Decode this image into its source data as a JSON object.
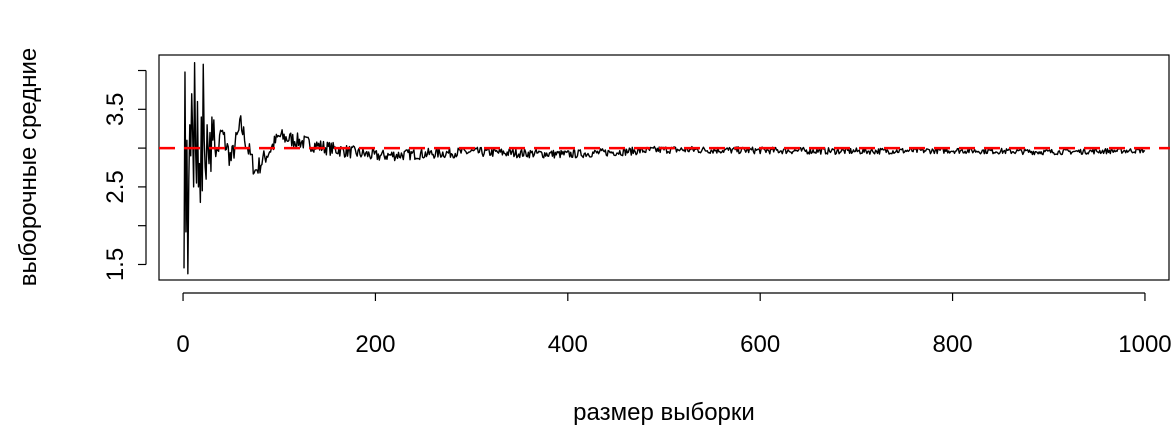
{
  "chart_data": {
    "type": "line",
    "title": "",
    "xlabel": "размер выборки",
    "ylabel": "выборочные средние",
    "xlim": [
      -25,
      1025
    ],
    "ylim": [
      1.3,
      4.2
    ],
    "x_ticks": [
      0,
      200,
      400,
      600,
      800,
      1000
    ],
    "y_ticks": [
      1.5,
      2.0,
      2.5,
      3.0,
      3.5,
      4.0
    ],
    "y_tick_labels": [
      "1.5",
      "",
      "2.5",
      "",
      "3.5",
      ""
    ],
    "grid": false,
    "legend": "none",
    "series": [
      {
        "name": "",
        "color": "#000000",
        "x_start": 1,
        "x_end": 1000,
        "values_at_checkpoints": {
          "x": [
            1,
            2,
            3,
            4,
            5,
            6,
            7,
            8,
            9,
            10,
            11,
            12,
            13,
            14,
            15,
            16,
            17,
            18,
            19,
            20,
            21,
            22,
            23,
            24,
            25,
            26,
            27,
            28,
            29,
            30,
            35,
            40,
            50,
            60,
            75,
            100,
            150,
            200,
            300,
            400,
            500,
            600,
            700,
            800,
            900,
            1000
          ],
          "y": [
            1.45,
            3.98,
            1.92,
            3.1,
            1.38,
            2.6,
            3.3,
            2.9,
            3.7,
            3.2,
            2.5,
            4.1,
            3.0,
            2.55,
            3.6,
            2.5,
            2.8,
            2.3,
            3.4,
            2.45,
            4.08,
            3.1,
            2.75,
            2.6,
            3.3,
            3.0,
            2.8,
            3.2,
            2.7,
            3.4,
            2.9,
            3.2,
            2.85,
            3.3,
            2.7,
            3.15,
            3.0,
            2.9,
            2.95,
            2.92,
            2.98,
            2.97,
            2.96,
            2.97,
            2.95,
            2.97
          ]
        },
        "envelope_amplitude_note": ""
      }
    ],
    "reference_line": {
      "y": 3.0,
      "color": "#ff0000",
      "style": "dashed"
    }
  }
}
